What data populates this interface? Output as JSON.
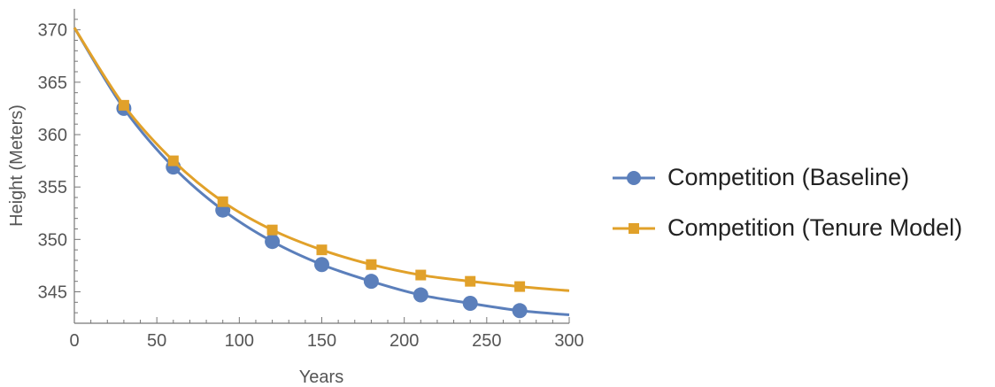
{
  "chart_data": {
    "type": "line",
    "title": "",
    "xlabel": "Years",
    "ylabel": "Height  (Meters)",
    "xlim": [
      0,
      300
    ],
    "ylim": [
      342,
      372
    ],
    "xticks": [
      0,
      50,
      100,
      150,
      200,
      250,
      300
    ],
    "yticks": [
      345,
      350,
      355,
      360,
      365,
      370
    ],
    "legend_position": "right",
    "grid": false,
    "series": [
      {
        "name": "Competition (Baseline)",
        "color": "#5b7fbb",
        "marker": "circle",
        "x": [
          30,
          60,
          90,
          120,
          150,
          180,
          210,
          240,
          270
        ],
        "y": [
          362.5,
          356.9,
          352.8,
          349.8,
          347.6,
          346.0,
          344.7,
          343.9,
          343.2
        ],
        "curve_x": [
          0,
          30,
          60,
          90,
          120,
          150,
          180,
          210,
          240,
          270,
          300
        ],
        "curve_y": [
          370.2,
          362.5,
          356.9,
          352.8,
          349.8,
          347.6,
          346.0,
          344.7,
          343.9,
          343.2,
          342.8
        ]
      },
      {
        "name": "Competition (Tenure Model)",
        "color": "#e1a12a",
        "marker": "square",
        "x": [
          30,
          60,
          90,
          120,
          150,
          180,
          210,
          240,
          270
        ],
        "y": [
          362.8,
          357.5,
          353.6,
          350.9,
          349.0,
          347.6,
          346.6,
          346.0,
          345.5
        ],
        "curve_x": [
          0,
          30,
          60,
          90,
          120,
          150,
          180,
          210,
          240,
          270,
          300
        ],
        "curve_y": [
          370.2,
          362.8,
          357.5,
          353.6,
          350.9,
          349.0,
          347.6,
          346.6,
          346.0,
          345.5,
          345.1
        ]
      }
    ]
  }
}
